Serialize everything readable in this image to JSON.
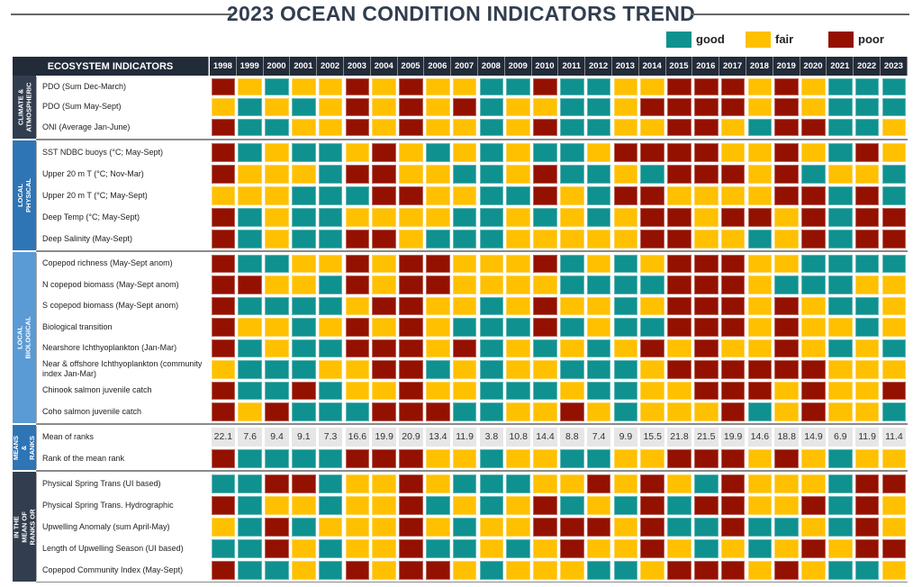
{
  "title": "2023 OCEAN CONDITION INDICATORS TREND",
  "legend": [
    {
      "code": "g",
      "label": "good",
      "color": "#0f918f"
    },
    {
      "code": "f",
      "label": "fair",
      "color": "#ffc000"
    },
    {
      "code": "p",
      "label": "poor",
      "color": "#941100"
    }
  ],
  "chart_data": {
    "type": "heatmap",
    "title": "2023 OCEAN CONDITION INDICATORS TREND",
    "header_label": "ECOSYSTEM INDICATORS",
    "years": [
      "1998",
      "1999",
      "2000",
      "2001",
      "2002",
      "2003",
      "2004",
      "2005",
      "2006",
      "2007",
      "2008",
      "2009",
      "2010",
      "2011",
      "2012",
      "2013",
      "2014",
      "2015",
      "2016",
      "2017",
      "2018",
      "2019",
      "2020",
      "2021",
      "2022",
      "2023"
    ],
    "rating_codes": {
      "g": "good",
      "f": "fair",
      "p": "poor"
    },
    "sections": [
      {
        "label": "CLIMATE & ATMOSPHERIC",
        "color": "#323e4f",
        "rows": [
          {
            "label": "PDO (Sum Dec-March)",
            "ratings": "pfgffpfpffggpggffpppfpfggg"
          },
          {
            "label": "PDO (Sum May-Sept)",
            "ratings": "fgfgfpfpfpgffggfppppfpfggg"
          },
          {
            "label": "ONI (Average Jan-June)",
            "ratings": "pggffpfpffgfpggffppfgppggf"
          }
        ]
      },
      {
        "label": "LOCAL PHYSICAL",
        "color": "#2e75b6",
        "rows": [
          {
            "label": "SST NDBC buoys (°C; May-Sept)",
            "ratings": "pgfggfpfgfgfggfppppffpfgpf"
          },
          {
            "label": "Upper 20 m T (°C; Nov-Mar)",
            "ratings": "pfffgppffggfpggfgpppfpgffg"
          },
          {
            "label": "Upper 20 m T (°C; May-Sept)",
            "ratings": "fffgggppffggpfgppffffppgpg"
          },
          {
            "label": "Deep Temp (°C; May-Sept)",
            "ratings": "pgfggffffggfgfgfppfppfpgpp"
          },
          {
            "label": "Deep Salinity (May-Sept)",
            "ratings": "pgfggppfgggfffffppffgfpgpp"
          }
        ]
      },
      {
        "label": "LOCAL BIOLOGICAL",
        "color": "#5b9bd5",
        "rows": [
          {
            "label": "Copepod richness (May-Sept anom)",
            "ratings": "pggffpfppfffpgfgfpppffgggg"
          },
          {
            "label": "N copepod biomass (May-Sept anom)",
            "ratings": "ppffgpfppffffggggpppfgggff"
          },
          {
            "label": "S copepod biomass (May-Sept anom)",
            "ratings": "pggggfppffgfpffgfpppfpfggf"
          },
          {
            "label": "Biological transition",
            "ratings": "pffgfpfpfgggpgfggpppfpffgf"
          },
          {
            "label": "Nearshore Ichthyoplankton (Jan-Mar)",
            "ratings": "pgfggpppfpgfgfgfpfpffpfgfg"
          },
          {
            "label": "Near & offshore Ichthyoplankton (community index Jan-Mar)",
            "ratings": "fgggffppgfgffgggfppppppfff"
          },
          {
            "label": "Chinook salmon juvenile catch",
            "ratings": "pggpgffpffgggfggffpppfpffp"
          },
          {
            "label": "Coho salmon juvenile catch",
            "ratings": "pfpgggpppggffpfgfffpgfpffg"
          }
        ]
      },
      {
        "label": "MEANS & RANKS",
        "color": "#2e75b6",
        "rows": [
          {
            "label": "Mean of ranks",
            "values": [
              "22.1",
              "7.6",
              "9.4",
              "9.1",
              "7.3",
              "16.6",
              "19.9",
              "20.9",
              "13.4",
              "11.9",
              "3.8",
              "10.8",
              "14.4",
              "8.8",
              "7.4",
              "9.9",
              "15.5",
              "21.8",
              "21.5",
              "19.9",
              "14.6",
              "18.8",
              "14.9",
              "6.9",
              "11.9",
              "11.4"
            ]
          },
          {
            "label": "Rank of the mean rank",
            "ratings": "pggggpppffgffggffpppfpfgff"
          }
        ]
      },
      {
        "label": "NOT INCLUDED IN THE MEAN OF RANKS OR STATISTICAL ANALYSES",
        "color": "#323e4f",
        "rows": [
          {
            "label": "Physical Spring Trans (UI based)",
            "ratings": "ggppgffpfgggffpfpfgpfffgpp"
          },
          {
            "label": "Physical Spring Trans. Hydrographic",
            "ratings": "pgffgffpgfgfpgfgpgppffpgpf"
          },
          {
            "label": "Upwelling Anomaly (sum April-May)",
            "ratings": "fgpgfffpfgffpppfpggpggfgpf"
          },
          {
            "label": "Length of Upwelling Season (UI based)",
            "ratings": "ggpfgffpggfgfpffpfgfgfpfpp"
          },
          {
            "label": "Copepod Community Index (May-Sept)",
            "ratings": "pggfgpfppfgfffggfpppfpfggf"
          }
        ]
      }
    ]
  }
}
